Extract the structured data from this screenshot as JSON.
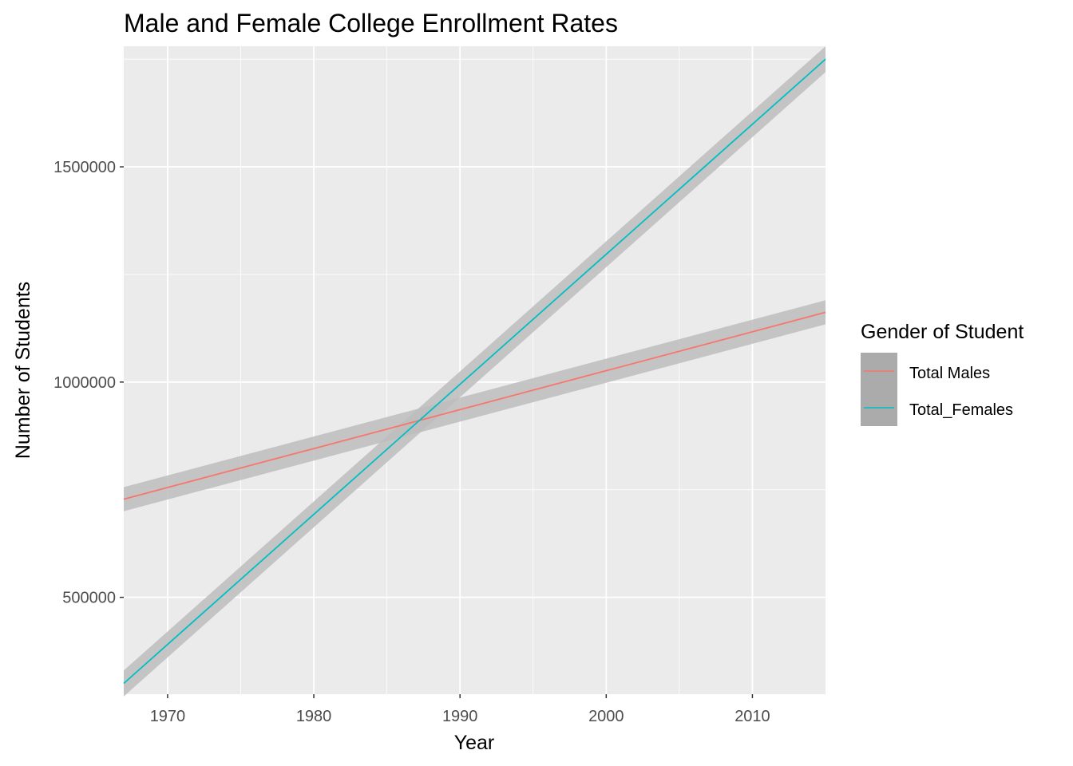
{
  "chart_data": {
    "type": "line",
    "title": "Male and Female College Enrollment Rates",
    "xlabel": "Year",
    "ylabel": "Number of Students",
    "xlim": [
      1967,
      2015
    ],
    "ylim": [
      275000,
      1780000
    ],
    "x_ticks": [
      1970,
      1980,
      1990,
      2000,
      2010
    ],
    "x_tick_labels": [
      "1970",
      "1980",
      "1990",
      "2000",
      "2010"
    ],
    "y_ticks": [
      500000,
      1000000,
      1500000
    ],
    "y_tick_labels": [
      "500000",
      "1000000",
      "1500000"
    ],
    "grid": true,
    "smoothed_with_confidence_band": true,
    "legend": {
      "title": "Gender of Student",
      "position": "right"
    },
    "series": [
      {
        "name": "Total Males",
        "color": "#F8766D",
        "x": [
          1967,
          2015
        ],
        "y": [
          728000,
          1162000
        ],
        "band_halfwidth": 28000
      },
      {
        "name": "Total_Females",
        "color": "#00BFC4",
        "x": [
          1967,
          2015
        ],
        "y": [
          300000,
          1750000
        ],
        "band_halfwidth": 30000
      }
    ]
  },
  "colors": {
    "panel_background": "#EBEBEB",
    "grid_major": "#FFFFFF",
    "band_fill": "#BDBDBD",
    "legend_key_fill": "#ABABAB"
  }
}
